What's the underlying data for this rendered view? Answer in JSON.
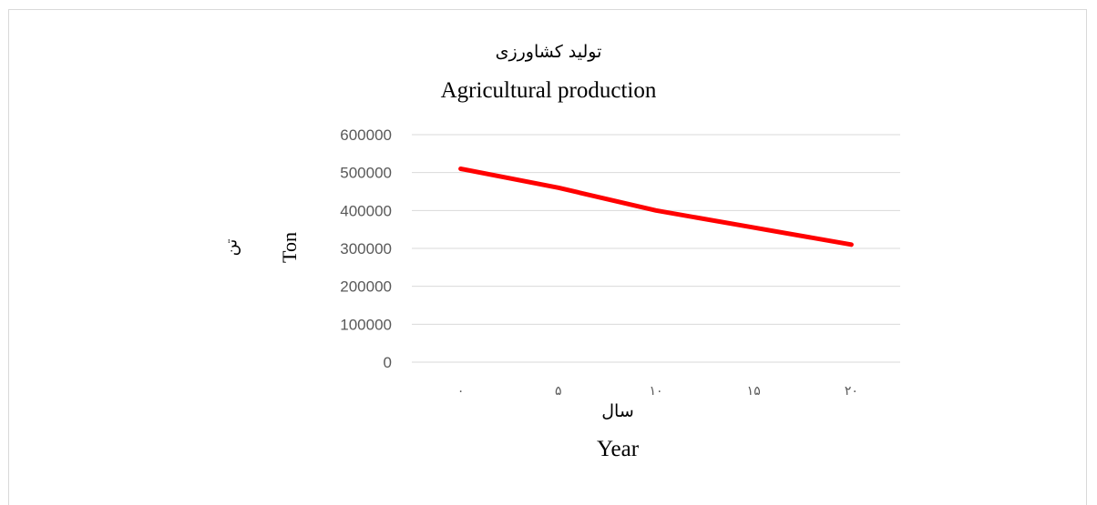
{
  "chart_data": {
    "type": "line",
    "title": "تولید کشاورزی",
    "subtitle": "Agricultural production",
    "xlabel": "سال",
    "xlabel_en": "Year",
    "ylabel": "تن",
    "ylabel_en": "Ton",
    "categories": [
      "۰",
      "۵",
      "۱۰",
      "۱۵",
      "۲۰"
    ],
    "series": [
      {
        "values": [
          510000,
          460000,
          400000,
          355000,
          310000
        ],
        "color": "#ff0000"
      }
    ],
    "yticks": [
      "600000",
      "500000",
      "400000",
      "300000",
      "200000",
      "100000",
      "0"
    ],
    "ylim": [
      0,
      600000
    ],
    "grid": true,
    "legend": "none"
  }
}
